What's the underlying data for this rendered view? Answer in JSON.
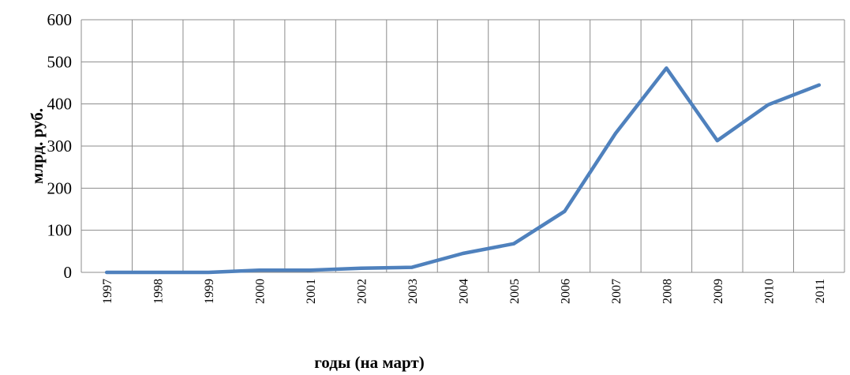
{
  "chart_data": {
    "type": "line",
    "xlabel": "годы (на март)",
    "ylabel": "млрд. руб.",
    "ylim": [
      0,
      600
    ],
    "yticks": [
      "0",
      "100",
      "200",
      "300",
      "400",
      "500",
      "600"
    ],
    "x": [
      "1997",
      "1998",
      "1999",
      "2000",
      "2001",
      "2002",
      "2003",
      "2004",
      "2005",
      "2006",
      "2007",
      "2008",
      "2009",
      "2010",
      "2011"
    ],
    "series": [
      {
        "values": [
          0,
          0,
          0,
          5,
          5,
          10,
          12,
          45,
          68,
          145,
          330,
          485,
          313,
          398,
          445
        ],
        "color": "#4f81bd"
      }
    ],
    "grid": true,
    "legend": "none"
  }
}
